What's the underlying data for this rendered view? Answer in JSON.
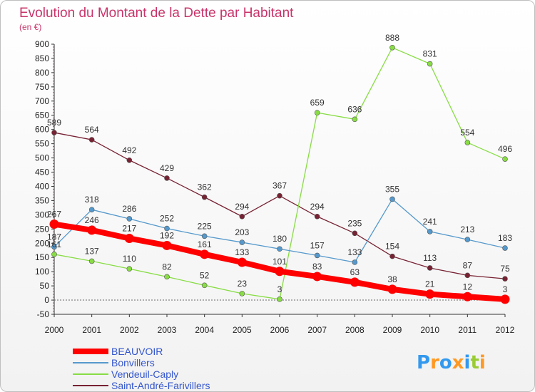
{
  "chart_data": {
    "type": "line",
    "title": "Evolution du Montant de la Dette par Habitant",
    "subtitle": "(en €)",
    "x": [
      "2000",
      "2001",
      "2002",
      "2003",
      "2004",
      "2005",
      "2006",
      "2007",
      "2008",
      "2009",
      "2010",
      "2011",
      "2012"
    ],
    "ylim": [
      -50,
      900
    ],
    "yticks": [
      -50,
      0,
      50,
      100,
      150,
      200,
      250,
      300,
      350,
      400,
      450,
      500,
      550,
      600,
      650,
      700,
      750,
      800,
      850,
      900
    ],
    "grid": false,
    "legend_position": "bottom-left",
    "series": [
      {
        "name": "BEAUVOIR",
        "color": "#ff0000",
        "values": [
          267,
          246,
          217,
          192,
          161,
          133,
          101,
          83,
          63,
          38,
          21,
          12,
          3
        ]
      },
      {
        "name": "Bonvillers",
        "color": "#5599cc",
        "values": [
          187,
          318,
          286,
          252,
          225,
          203,
          180,
          157,
          133,
          355,
          241,
          213,
          183
        ]
      },
      {
        "name": "Vendeuil-Caply",
        "color": "#88dd44",
        "values": [
          161,
          137,
          110,
          82,
          52,
          23,
          3,
          659,
          636,
          888,
          831,
          554,
          496
        ]
      },
      {
        "name": "Saint-André-Farivillers",
        "color": "#772233",
        "values": [
          589,
          564,
          492,
          429,
          362,
          294,
          367,
          294,
          235,
          154,
          113,
          87,
          75
        ]
      }
    ]
  },
  "logo": {
    "text": "Proxiti",
    "letters": [
      {
        "ch": "P",
        "color": "#3399ee"
      },
      {
        "ch": "r",
        "color": "#ff9922"
      },
      {
        "ch": "o",
        "color": "#3399ee"
      },
      {
        "ch": "x",
        "color": "#ff9922"
      },
      {
        "ch": "i",
        "color": "#3399ee"
      },
      {
        "ch": "t",
        "color": "#99cc33"
      },
      {
        "ch": "i",
        "color": "#ff9922"
      }
    ]
  }
}
